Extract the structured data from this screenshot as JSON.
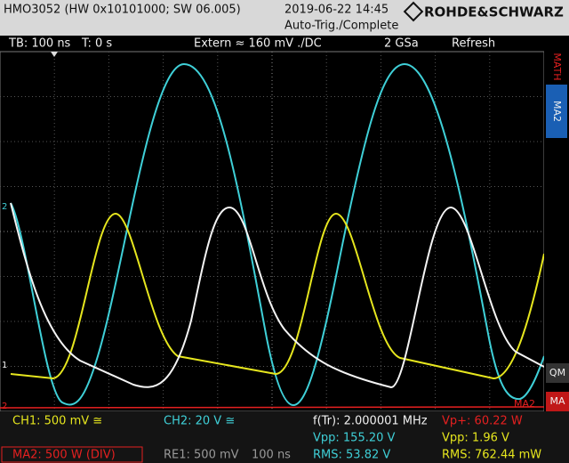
{
  "header": {
    "device": "HMO3052 (HW 0x10101000; SW 06.005)",
    "datetime": "2019-06-22 14:45",
    "trigger_status": "Auto-Trig./Complete",
    "brand": "ROHDE&SCHWARZ"
  },
  "settings": {
    "timebase": "TB: 100 ns",
    "trigger_time": "T: 0 s",
    "trigger": "Extern ≈ 160 mV ./DC",
    "sample_rate": "2 GSa",
    "mode": "Refresh"
  },
  "markers": [
    "2",
    "1",
    "2",
    "MA2"
  ],
  "side_menu": [
    "MATH",
    "MA2",
    "QM",
    "MA"
  ],
  "readout": {
    "ch1": "CH1: 500 mV ≅",
    "ch2": "CH2: 20 V ≅",
    "frequency": "f(Tr): 2.000001 MHz",
    "math_peak": "Vp+: 60.22 W",
    "ch2_vpp": "Vpp: 155.20 V",
    "ch1_vpp": "Vpp: 1.96 V",
    "ma2": "MA2: 500 W (DIV)",
    "re1": "RE1: 500 mV",
    "re1_time": "100 ns",
    "ch2_rms": "RMS: 53.82 V",
    "math_rms": "RMS: 762.44 mW"
  }
}
